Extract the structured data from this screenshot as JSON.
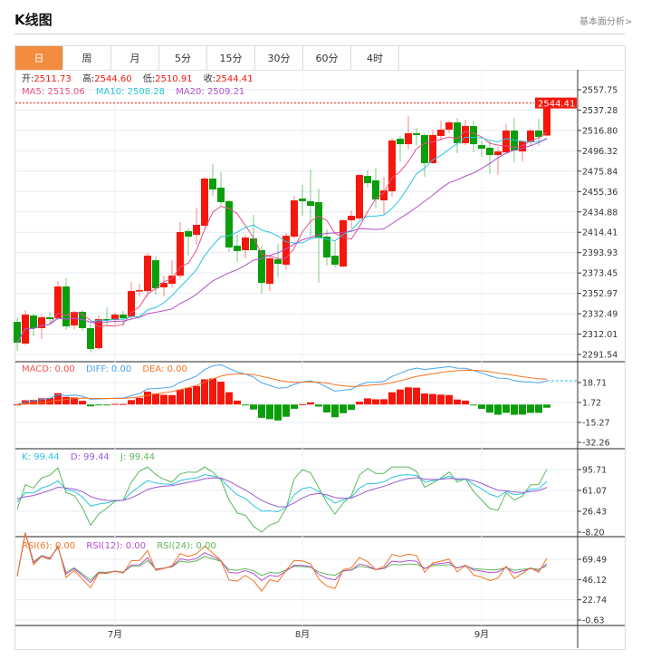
{
  "header": {
    "title": "K线图",
    "link": "基本面分析>"
  },
  "tabs": [
    {
      "label": "日",
      "active": true
    },
    {
      "label": "周"
    },
    {
      "label": "月"
    },
    {
      "label": "5分"
    },
    {
      "label": "15分"
    },
    {
      "label": "30分"
    },
    {
      "label": "60分"
    },
    {
      "label": "4时"
    }
  ],
  "colors": {
    "up": "#f5170c",
    "down": "#0a9e0a",
    "ma5": "#ec4f86",
    "ma10": "#2cc4de",
    "ma20": "#b44fcc",
    "diff": "#4aa3f0",
    "dea": "#f27420",
    "k": "#2cc4de",
    "d": "#9b59d0",
    "j": "#5cb85c",
    "rsi6": "#f27420",
    "rsi12": "#b44fcc",
    "rsi24": "#5cb85c",
    "active_tab": "#f28c3e"
  },
  "ohlc_legend": {
    "open_label": "开:",
    "open": "2511.73",
    "high_label": "高:",
    "high": "2544.60",
    "low_label": "低:",
    "low": "2510.91",
    "close_label": "收:",
    "close": "2544.41"
  },
  "ma_legend": {
    "ma5": "MA5: 2515.06",
    "ma10": "MA10: 2508.28",
    "ma20": "MA20: 2509.21"
  },
  "macd_legend": {
    "macd": "MACD: 0.00",
    "diff": "DIFF: 0.00",
    "dea": "DEA: 0.00"
  },
  "kdj_legend": {
    "k": "K: 99.44",
    "d": "D: 99.44",
    "j": "J: 99.44"
  },
  "rsi_legend": {
    "rsi6": "RSI(6): 0.00",
    "rsi12": "RSI(12): 0.00",
    "rsi24": "RSI(24): 0.00"
  },
  "last_price": "2544.41",
  "chart_data": {
    "type": "candlestick",
    "x_labels": [
      {
        "label": "7月",
        "index": 12
      },
      {
        "label": "8月",
        "index": 35
      },
      {
        "label": "9月",
        "index": 57
      }
    ],
    "price_ticks": [
      "2557.75",
      "2537.28",
      "2516.80",
      "2496.32",
      "2475.84",
      "2455.36",
      "2434.88",
      "2414.41",
      "2393.93",
      "2373.45",
      "2352.97",
      "2332.49",
      "2312.01",
      "2291.54"
    ],
    "macd_ticks": [
      "18.71",
      "1.72",
      "-15.27",
      "-32.26"
    ],
    "kdj_ticks": [
      "95.71",
      "61.07",
      "26.43",
      "-8.20"
    ],
    "rsi_ticks": [
      "69.49",
      "46.12",
      "22.74",
      "-0.63"
    ],
    "ohlc": [
      [
        2324.3,
        2328.9,
        2295.2,
        2303.4
      ],
      [
        2302.5,
        2336.2,
        2300.6,
        2331.6
      ],
      [
        2330.7,
        2332.6,
        2309.8,
        2318.0
      ],
      [
        2318.0,
        2331.6,
        2307.0,
        2328.9
      ],
      [
        2328.9,
        2334.4,
        2322.5,
        2327.1
      ],
      [
        2328.0,
        2365.4,
        2326.2,
        2359.9
      ],
      [
        2359.9,
        2368.1,
        2316.1,
        2319.8
      ],
      [
        2320.7,
        2335.3,
        2317.0,
        2334.4
      ],
      [
        2334.4,
        2336.2,
        2315.2,
        2318.0
      ],
      [
        2318.0,
        2322.5,
        2293.4,
        2297.0
      ],
      [
        2297.9,
        2330.7,
        2296.1,
        2327.1
      ],
      [
        2327.1,
        2338.9,
        2319.8,
        2326.2
      ],
      [
        2326.2,
        2333.5,
        2321.6,
        2331.6
      ],
      [
        2331.6,
        2335.3,
        2319.8,
        2328.0
      ],
      [
        2329.8,
        2364.5,
        2327.1,
        2355.3
      ],
      [
        2355.3,
        2362.6,
        2349.9,
        2356.2
      ],
      [
        2355.3,
        2393.6,
        2349.0,
        2390.9
      ],
      [
        2386.3,
        2390.9,
        2351.7,
        2358.1
      ],
      [
        2359.0,
        2370.8,
        2349.9,
        2363.5
      ],
      [
        2362.6,
        2386.3,
        2359.0,
        2370.8
      ],
      [
        2370.8,
        2424.6,
        2368.1,
        2414.6
      ],
      [
        2415.5,
        2418.3,
        2390.9,
        2410.0
      ],
      [
        2411.9,
        2439.2,
        2401.8,
        2421.9
      ],
      [
        2421.0,
        2470.2,
        2420.1,
        2468.4
      ],
      [
        2468.4,
        2483.0,
        2451.1,
        2457.5
      ],
      [
        2459.3,
        2474.8,
        2441.0,
        2444.7
      ],
      [
        2445.6,
        2447.4,
        2394.6,
        2399.1
      ],
      [
        2400.9,
        2411.9,
        2384.5,
        2395.5
      ],
      [
        2396.4,
        2411.9,
        2388.2,
        2409.1
      ],
      [
        2408.2,
        2431.9,
        2396.4,
        2396.4
      ],
      [
        2396.4,
        2400.9,
        2352.6,
        2363.5
      ],
      [
        2362.6,
        2390.0,
        2355.3,
        2388.2
      ],
      [
        2387.3,
        2402.7,
        2369.0,
        2382.7
      ],
      [
        2381.8,
        2413.7,
        2377.2,
        2410.9
      ],
      [
        2410.0,
        2451.1,
        2408.2,
        2446.5
      ],
      [
        2448.3,
        2462.0,
        2431.0,
        2445.6
      ],
      [
        2445.6,
        2477.5,
        2410.9,
        2441.0
      ],
      [
        2444.7,
        2458.4,
        2363.5,
        2409.1
      ],
      [
        2410.0,
        2417.3,
        2380.9,
        2389.1
      ],
      [
        2390.9,
        2405.5,
        2379.1,
        2381.8
      ],
      [
        2380.0,
        2427.4,
        2379.1,
        2426.5
      ],
      [
        2426.5,
        2436.5,
        2418.3,
        2431.0
      ],
      [
        2428.3,
        2472.9,
        2426.5,
        2472.0
      ],
      [
        2471.1,
        2476.6,
        2459.3,
        2463.8
      ],
      [
        2466.6,
        2479.3,
        2438.3,
        2447.4
      ],
      [
        2446.5,
        2470.2,
        2431.9,
        2456.5
      ],
      [
        2455.6,
        2509.4,
        2450.2,
        2506.7
      ],
      [
        2508.5,
        2511.2,
        2485.7,
        2503.0
      ],
      [
        2503.0,
        2531.3,
        2497.6,
        2514.0
      ],
      [
        2514.0,
        2519.5,
        2502.1,
        2512.2
      ],
      [
        2512.2,
        2514.0,
        2470.2,
        2483.9
      ],
      [
        2483.9,
        2517.6,
        2483.0,
        2512.2
      ],
      [
        2511.2,
        2526.7,
        2506.7,
        2517.6
      ],
      [
        2517.6,
        2526.7,
        2514.0,
        2524.9
      ],
      [
        2524.9,
        2529.5,
        2493.9,
        2504.0
      ],
      [
        2504.0,
        2527.7,
        2502.1,
        2521.3
      ],
      [
        2521.3,
        2526.7,
        2494.8,
        2503.0
      ],
      [
        2502.1,
        2506.7,
        2490.3,
        2498.5
      ],
      [
        2499.4,
        2506.7,
        2472.9,
        2492.1
      ],
      [
        2492.1,
        2500.3,
        2472.0,
        2495.7
      ],
      [
        2494.8,
        2523.1,
        2493.0,
        2516.7
      ],
      [
        2516.7,
        2529.5,
        2484.8,
        2496.7
      ],
      [
        2495.7,
        2506.7,
        2485.7,
        2505.8
      ],
      [
        2505.8,
        2518.5,
        2502.1,
        2516.7
      ],
      [
        2516.7,
        2528.6,
        2501.2,
        2510.3
      ],
      [
        2511.73,
        2544.6,
        2510.91,
        2544.41
      ]
    ]
  }
}
